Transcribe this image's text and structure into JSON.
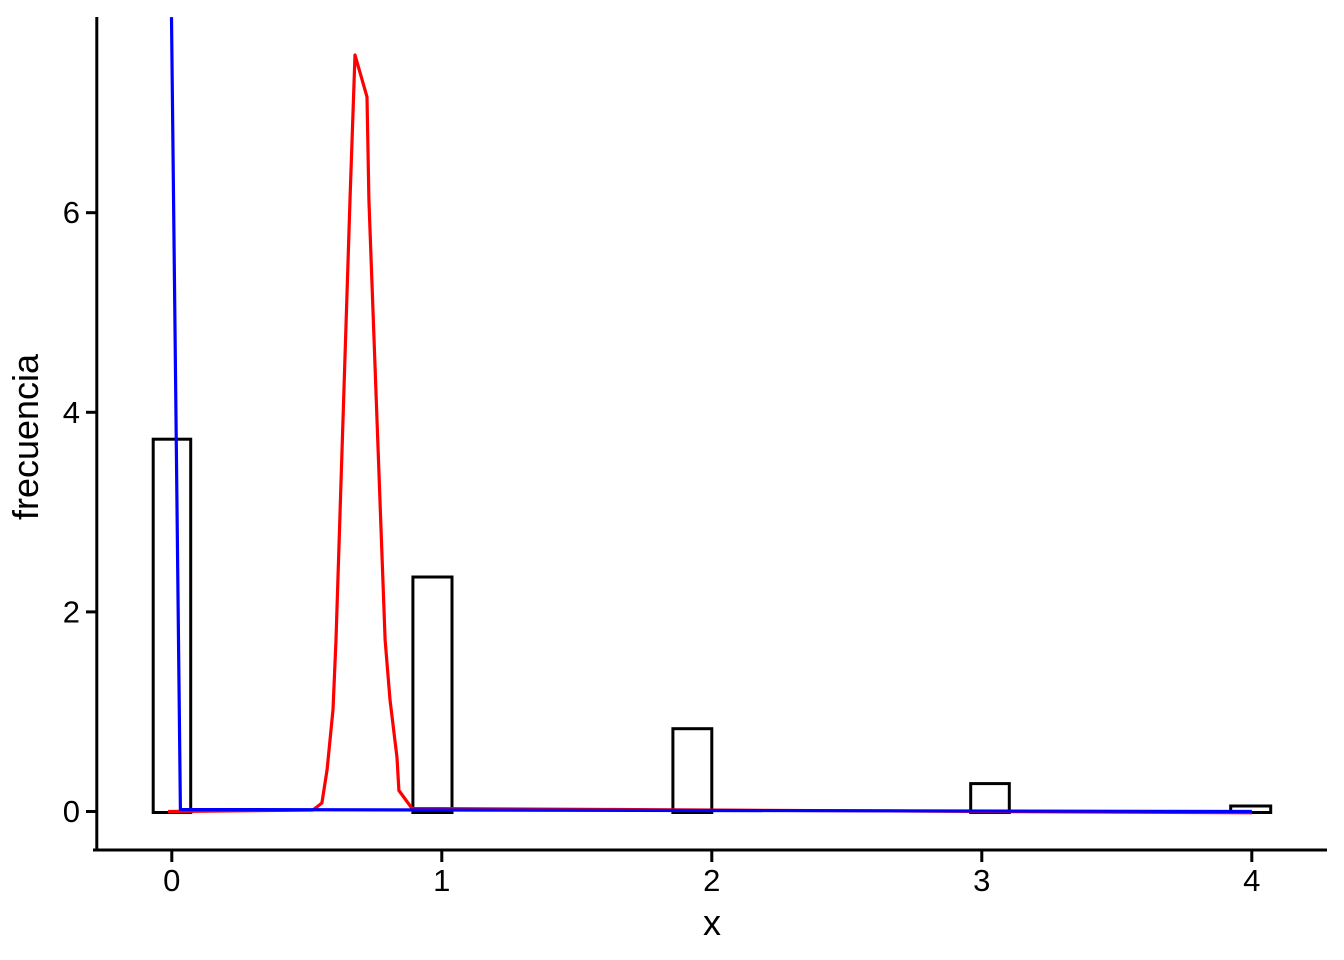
{
  "chart_data": {
    "type": "bar",
    "subtype": "histogram-with-density-overlays",
    "title": "",
    "xlabel": "x",
    "ylabel": "frecuencia",
    "xlim": [
      -0.29,
      4.28
    ],
    "ylim": [
      0,
      7.96
    ],
    "xticks": [
      0,
      1,
      2,
      3,
      4
    ],
    "yticks": [
      0,
      2,
      4,
      6
    ],
    "grid": false,
    "legend": null,
    "bar_fill": "#ffffff",
    "bar_stroke": "#000000",
    "axis_color": "#000000",
    "bars": [
      {
        "x0": -0.069,
        "x1": 0.07,
        "height": 3.73
      },
      {
        "x0": 0.893,
        "x1": 1.038,
        "height": 2.35
      },
      {
        "x0": 1.856,
        "x1": 2.0,
        "height": 0.83
      },
      {
        "x0": 2.959,
        "x1": 3.102,
        "height": 0.28
      },
      {
        "x0": 3.922,
        "x1": 4.07,
        "height": 0.055
      }
    ],
    "series": [
      {
        "name": "red-density-curve",
        "color": "#ff0000",
        "points": [
          [
            -0.014,
            0.0
          ],
          [
            0.523,
            0.015
          ],
          [
            0.556,
            0.085
          ],
          [
            0.575,
            0.42
          ],
          [
            0.597,
            1.02
          ],
          [
            0.608,
            1.72
          ],
          [
            0.66,
            6.13
          ],
          [
            0.6785,
            7.58
          ],
          [
            0.723,
            7.16
          ],
          [
            0.73,
            6.13
          ],
          [
            0.79,
            1.72
          ],
          [
            0.808,
            1.12
          ],
          [
            0.834,
            0.54
          ],
          [
            0.841,
            0.21
          ],
          [
            0.89,
            0.03
          ],
          [
            4.0,
            -0.013
          ]
        ]
      },
      {
        "name": "blue-density-curve",
        "color": "#0000ff",
        "points": [
          [
            -0.001,
            7.96
          ],
          [
            0.032,
            0.02
          ],
          [
            4.0,
            0.0
          ]
        ]
      }
    ]
  }
}
